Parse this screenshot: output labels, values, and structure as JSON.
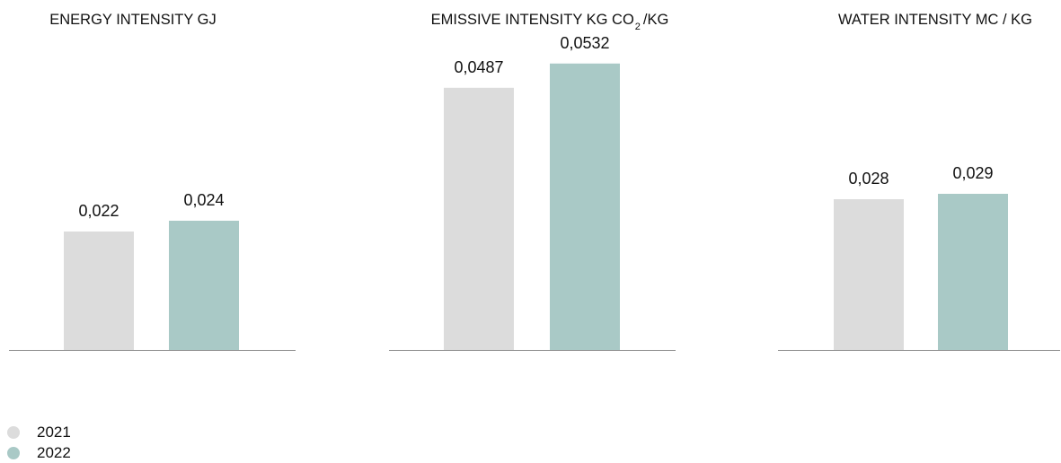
{
  "colors": {
    "series_2021": "#dcdcdc",
    "series_2022": "#a9c9c6",
    "baseline": "#8a8a8a",
    "text": "#111111"
  },
  "legend": {
    "items": [
      {
        "label": "2021",
        "color": "#dcdcdc"
      },
      {
        "label": "2022",
        "color": "#a9c9c6"
      }
    ],
    "placement": "bottom-left"
  },
  "chart_data": [
    {
      "type": "bar",
      "title": "ENERGY INTENSITY GJ",
      "categories": [
        "2021",
        "2022"
      ],
      "values": [
        0.022,
        0.024
      ],
      "labels": [
        "0,022",
        "0,024"
      ],
      "ylim": [
        0,
        0.055
      ],
      "grid": false
    },
    {
      "type": "bar",
      "title": "EMISSIVE INTENSITY KG CO",
      "title_sub": "2",
      "title_suffix": "/KG",
      "categories": [
        "2021",
        "2022"
      ],
      "values": [
        0.0487,
        0.0532
      ],
      "labels": [
        "0,0487",
        "0,0532"
      ],
      "ylim": [
        0,
        0.055
      ],
      "grid": false
    },
    {
      "type": "bar",
      "title": "WATER INTENSITY MC / KG",
      "categories": [
        "2021",
        "2022"
      ],
      "values": [
        0.028,
        0.029
      ],
      "labels": [
        "0,028",
        "0,029"
      ],
      "ylim": [
        0,
        0.055
      ],
      "grid": false
    }
  ]
}
